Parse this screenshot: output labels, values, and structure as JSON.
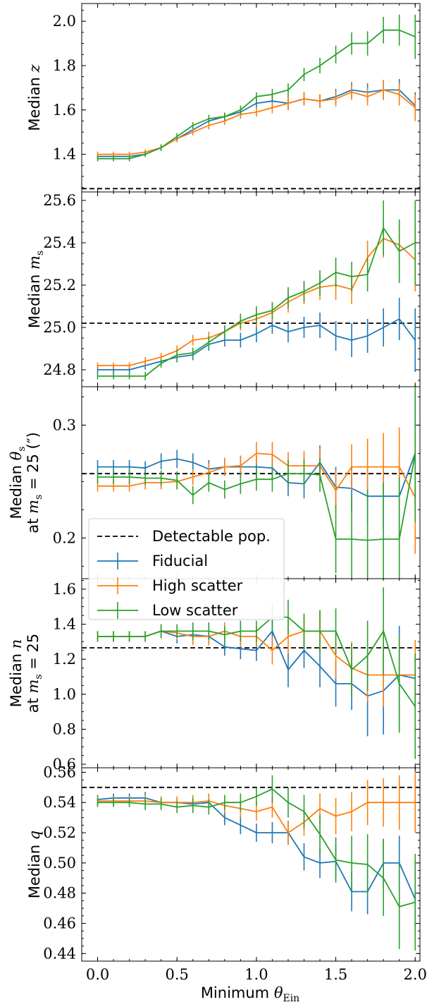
{
  "chart_data": {
    "type": "line",
    "xlabel": "Minimum θ_Ein",
    "x_ticks": [
      "0.0",
      "0.5",
      "1.0",
      "1.5",
      "2.0"
    ],
    "xlim": [
      -0.1,
      2.03
    ],
    "x": [
      0.0,
      0.1,
      0.2,
      0.3,
      0.4,
      0.5,
      0.6,
      0.7,
      0.8,
      0.9,
      1.0,
      1.1,
      1.2,
      1.3,
      1.4,
      1.5,
      1.6,
      1.7,
      1.8,
      1.9,
      2.0
    ],
    "legend": {
      "position": "left, spanning middle panels",
      "entries": [
        {
          "label": "Detectable pop.",
          "color": "#000000",
          "style": "dashed"
        },
        {
          "label": "Fiducial",
          "color": "#1f77b4",
          "style": "errorbar"
        },
        {
          "label": "High scatter",
          "color": "#ff7f0e",
          "style": "errorbar"
        },
        {
          "label": "Low scatter",
          "color": "#2ca02c",
          "style": "errorbar"
        }
      ]
    },
    "panels": [
      {
        "ylabel": "Median z",
        "ylim": [
          1.23,
          2.08
        ],
        "y_ticks": [
          1.4,
          1.6,
          1.8,
          2.0
        ],
        "y_tick_labels": [
          "1.4",
          "1.6",
          "1.8",
          "2.0"
        ],
        "detectable": 1.245,
        "series": [
          {
            "name": "Fiducial",
            "values": [
              1.39,
              1.39,
              1.39,
              1.4,
              1.43,
              1.47,
              1.51,
              1.55,
              1.57,
              1.59,
              1.63,
              1.64,
              1.63,
              1.65,
              1.64,
              1.66,
              1.69,
              1.68,
              1.69,
              1.69,
              1.62
            ],
            "errors": [
              0.012,
              0.012,
              0.012,
              0.012,
              0.015,
              0.015,
              0.015,
              0.018,
              0.018,
              0.02,
              0.02,
              0.025,
              0.03,
              0.03,
              0.03,
              0.035,
              0.035,
              0.04,
              0.045,
              0.05,
              0.06
            ]
          },
          {
            "name": "High scatter",
            "values": [
              1.4,
              1.4,
              1.4,
              1.41,
              1.43,
              1.47,
              1.5,
              1.53,
              1.55,
              1.58,
              1.59,
              1.61,
              1.63,
              1.65,
              1.64,
              1.65,
              1.68,
              1.66,
              1.69,
              1.67,
              1.61
            ],
            "errors": [
              0.012,
              0.012,
              0.012,
              0.012,
              0.015,
              0.015,
              0.015,
              0.018,
              0.018,
              0.02,
              0.02,
              0.025,
              0.03,
              0.03,
              0.03,
              0.035,
              0.035,
              0.04,
              0.045,
              0.05,
              0.06
            ]
          },
          {
            "name": "Low scatter",
            "values": [
              1.38,
              1.38,
              1.38,
              1.4,
              1.43,
              1.48,
              1.53,
              1.56,
              1.57,
              1.6,
              1.66,
              1.67,
              1.69,
              1.76,
              1.8,
              1.85,
              1.9,
              1.9,
              1.96,
              1.96,
              1.93
            ],
            "errors": [
              0.012,
              0.012,
              0.012,
              0.012,
              0.015,
              0.015,
              0.015,
              0.018,
              0.018,
              0.02,
              0.02,
              0.025,
              0.03,
              0.03,
              0.035,
              0.04,
              0.05,
              0.055,
              0.06,
              0.07,
              0.1
            ]
          }
        ]
      },
      {
        "ylabel": "Median m_s",
        "ylim": [
          24.72,
          25.64
        ],
        "y_ticks": [
          24.8,
          25.0,
          25.2,
          25.4,
          25.6
        ],
        "y_tick_labels": [
          "24.8",
          "25.0",
          "25.2",
          "25.4",
          "25.6"
        ],
        "detectable": 25.02,
        "series": [
          {
            "name": "Fiducial",
            "values": [
              24.8,
              24.8,
              24.8,
              24.82,
              24.84,
              24.86,
              24.87,
              24.92,
              24.94,
              24.94,
              24.97,
              25.01,
              24.98,
              25.0,
              25.01,
              24.96,
              24.94,
              24.96,
              25.0,
              25.04,
              24.94
            ],
            "errors": [
              0.02,
              0.02,
              0.02,
              0.02,
              0.02,
              0.025,
              0.025,
              0.03,
              0.03,
              0.035,
              0.04,
              0.04,
              0.05,
              0.05,
              0.06,
              0.07,
              0.08,
              0.08,
              0.09,
              0.1,
              0.15
            ]
          },
          {
            "name": "High scatter",
            "values": [
              24.82,
              24.82,
              24.82,
              24.84,
              24.86,
              24.89,
              24.94,
              24.95,
              24.98,
              25.02,
              25.04,
              25.07,
              25.12,
              25.16,
              25.19,
              25.2,
              25.18,
              25.33,
              25.42,
              25.39,
              25.32
            ],
            "errors": [
              0.015,
              0.015,
              0.015,
              0.02,
              0.02,
              0.025,
              0.025,
              0.03,
              0.03,
              0.035,
              0.04,
              0.04,
              0.05,
              0.05,
              0.06,
              0.07,
              0.07,
              0.08,
              0.09,
              0.1,
              0.15
            ]
          },
          {
            "name": "Low scatter",
            "values": [
              24.77,
              24.77,
              24.77,
              24.77,
              24.83,
              24.87,
              24.88,
              24.93,
              24.98,
              25.03,
              25.06,
              25.08,
              25.14,
              25.17,
              25.21,
              25.26,
              25.24,
              25.25,
              25.47,
              25.36,
              25.4
            ],
            "errors": [
              0.015,
              0.015,
              0.015,
              0.02,
              0.02,
              0.025,
              0.025,
              0.03,
              0.03,
              0.035,
              0.04,
              0.04,
              0.05,
              0.05,
              0.06,
              0.07,
              0.07,
              0.08,
              0.13,
              0.15,
              0.2
            ]
          }
        ]
      },
      {
        "ylabel": "Median θ_s",
        "ylabel2": "at m_s = 25 (″)",
        "ylim": [
          0.164,
          0.334
        ],
        "y_ticks": [
          0.2,
          0.3
        ],
        "y_tick_labels": [
          "0.2",
          "0.3"
        ],
        "detectable": 0.257,
        "series": [
          {
            "name": "Fiducial",
            "values": [
              0.263,
              0.263,
              0.263,
              0.262,
              0.268,
              0.27,
              0.267,
              0.261,
              0.263,
              0.263,
              0.263,
              0.262,
              0.249,
              0.248,
              0.267,
              0.245,
              0.244,
              0.237,
              0.237,
              0.237,
              0.275
            ],
            "errors": [
              0.006,
              0.006,
              0.006,
              0.006,
              0.007,
              0.008,
              0.008,
              0.008,
              0.008,
              0.009,
              0.01,
              0.01,
              0.012,
              0.013,
              0.015,
              0.018,
              0.02,
              0.025,
              0.03,
              0.035,
              0.05
            ]
          },
          {
            "name": "High scatter",
            "values": [
              0.246,
              0.246,
              0.246,
              0.249,
              0.249,
              0.25,
              0.254,
              0.258,
              0.263,
              0.264,
              0.275,
              0.274,
              0.264,
              0.264,
              0.264,
              0.242,
              0.263,
              0.263,
              0.263,
              0.263,
              0.236
            ],
            "errors": [
              0.005,
              0.005,
              0.005,
              0.006,
              0.006,
              0.007,
              0.007,
              0.008,
              0.008,
              0.009,
              0.01,
              0.011,
              0.012,
              0.013,
              0.015,
              0.018,
              0.02,
              0.025,
              0.03,
              0.035,
              0.05
            ]
          },
          {
            "name": "Low scatter",
            "values": [
              0.254,
              0.254,
              0.254,
              0.253,
              0.253,
              0.251,
              0.238,
              0.249,
              0.243,
              0.248,
              0.252,
              0.252,
              0.257,
              0.257,
              0.256,
              0.199,
              0.199,
              0.198,
              0.199,
              0.199,
              0.274
            ],
            "errors": [
              0.006,
              0.006,
              0.006,
              0.006,
              0.007,
              0.008,
              0.008,
              0.008,
              0.008,
              0.009,
              0.01,
              0.011,
              0.012,
              0.013,
              0.015,
              0.03,
              0.04,
              0.045,
              0.05,
              0.055,
              0.06
            ]
          }
        ]
      },
      {
        "ylabel": "Median n",
        "ylabel2": "at m_s = 25",
        "ylim": [
          0.58,
          1.66
        ],
        "y_ticks": [
          0.6,
          0.8,
          1.0,
          1.2,
          1.4,
          1.6
        ],
        "y_tick_labels": [
          "0.6",
          "0.8",
          "1.0",
          "1.2",
          "1.4",
          "1.6"
        ],
        "detectable": 1.265,
        "series": [
          {
            "name": "Fiducial",
            "values": [
              1.33,
              1.33,
              1.33,
              1.33,
              1.36,
              1.33,
              1.34,
              1.33,
              1.27,
              1.26,
              1.25,
              1.36,
              1.14,
              1.25,
              1.16,
              1.06,
              1.06,
              0.99,
              1.02,
              1.11,
              1.09
            ],
            "errors": [
              0.03,
              0.03,
              0.03,
              0.03,
              0.04,
              0.04,
              0.05,
              0.05,
              0.05,
              0.06,
              0.06,
              0.08,
              0.1,
              0.1,
              0.12,
              0.13,
              0.15,
              0.23,
              0.25,
              0.28,
              0.15
            ]
          },
          {
            "name": "High scatter",
            "values": [
              1.33,
              1.33,
              1.33,
              1.33,
              1.36,
              1.35,
              1.33,
              1.33,
              1.36,
              1.33,
              1.33,
              1.25,
              1.33,
              1.36,
              1.36,
              1.22,
              1.15,
              1.11,
              1.11,
              1.11,
              1.11
            ],
            "errors": [
              0.03,
              0.03,
              0.03,
              0.03,
              0.04,
              0.04,
              0.05,
              0.05,
              0.05,
              0.06,
              0.06,
              0.08,
              0.1,
              0.1,
              0.12,
              0.13,
              0.15,
              0.15,
              0.18,
              0.2,
              0.2
            ]
          },
          {
            "name": "Low scatter",
            "values": [
              1.33,
              1.33,
              1.33,
              1.33,
              1.36,
              1.36,
              1.36,
              1.36,
              1.34,
              1.36,
              1.36,
              1.44,
              1.44,
              1.36,
              1.36,
              1.36,
              1.14,
              1.22,
              1.36,
              1.06,
              0.93
            ],
            "errors": [
              0.03,
              0.03,
              0.03,
              0.03,
              0.04,
              0.04,
              0.05,
              0.05,
              0.05,
              0.06,
              0.06,
              0.08,
              0.1,
              0.1,
              0.12,
              0.13,
              0.15,
              0.2,
              0.25,
              0.28,
              0.3
            ]
          }
        ]
      },
      {
        "ylabel": "Median q",
        "ylim": [
          0.435,
          0.563
        ],
        "y_ticks": [
          0.44,
          0.46,
          0.48,
          0.5,
          0.52,
          0.54,
          0.56
        ],
        "y_tick_labels": [
          "0.44",
          "0.46",
          "0.48",
          "0.50",
          "0.52",
          "0.54",
          "0.56"
        ],
        "detectable": 0.55,
        "series": [
          {
            "name": "Fiducial",
            "values": [
              0.542,
              0.543,
              0.543,
              0.543,
              0.54,
              0.54,
              0.539,
              0.54,
              0.53,
              0.525,
              0.52,
              0.52,
              0.52,
              0.504,
              0.5,
              0.501,
              0.481,
              0.481,
              0.5,
              0.5,
              0.476
            ],
            "errors": [
              0.003,
              0.003,
              0.003,
              0.004,
              0.004,
              0.004,
              0.005,
              0.005,
              0.005,
              0.006,
              0.006,
              0.007,
              0.008,
              0.009,
              0.01,
              0.012,
              0.013,
              0.015,
              0.016,
              0.018,
              0.02
            ]
          },
          {
            "name": "High scatter",
            "values": [
              0.541,
              0.541,
              0.541,
              0.541,
              0.54,
              0.54,
              0.54,
              0.541,
              0.538,
              0.536,
              0.534,
              0.537,
              0.52,
              0.527,
              0.536,
              0.531,
              0.534,
              0.54,
              0.54,
              0.54,
              0.54
            ],
            "errors": [
              0.003,
              0.003,
              0.003,
              0.004,
              0.004,
              0.004,
              0.005,
              0.005,
              0.005,
              0.006,
              0.006,
              0.007,
              0.008,
              0.009,
              0.01,
              0.012,
              0.013,
              0.015,
              0.016,
              0.018,
              0.02
            ]
          },
          {
            "name": "Low scatter",
            "values": [
              0.54,
              0.54,
              0.54,
              0.539,
              0.539,
              0.537,
              0.538,
              0.537,
              0.54,
              0.54,
              0.544,
              0.549,
              0.54,
              0.534,
              0.519,
              0.502,
              0.5,
              0.499,
              0.49,
              0.471,
              0.474
            ],
            "errors": [
              0.003,
              0.003,
              0.003,
              0.004,
              0.004,
              0.004,
              0.005,
              0.005,
              0.005,
              0.006,
              0.006,
              0.009,
              0.01,
              0.011,
              0.013,
              0.015,
              0.018,
              0.02,
              0.025,
              0.028,
              0.032
            ]
          }
        ]
      }
    ]
  }
}
